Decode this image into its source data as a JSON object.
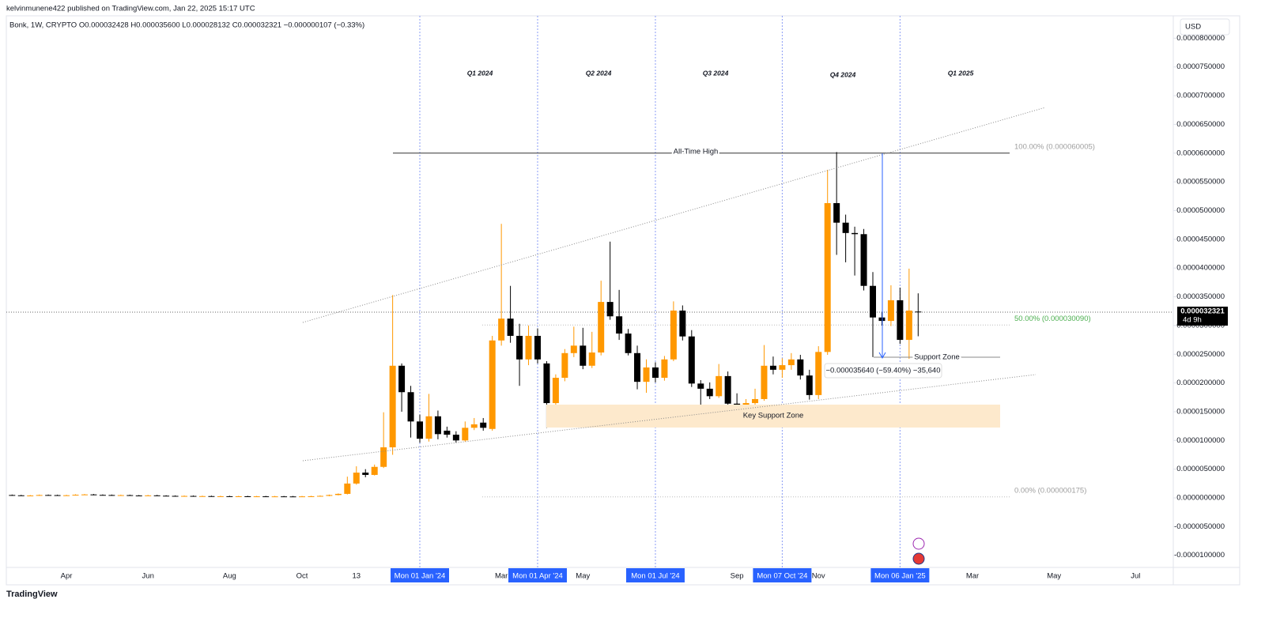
{
  "header": {
    "published": "kelvinmunene422 published on TradingView.com, Jan 22, 2025 15:17 UTC",
    "symbol_info": "Bonk, 1W, CRYPTO  O0.000032428  H0.000035600  L0.000028132  C0.000032321  −0.000000107 (−0.33%)",
    "currency": "USD",
    "brand": "TradingView"
  },
  "chart_data": {
    "type": "candlestick",
    "categories": [
      null,
      null,
      null,
      null,
      null,
      null,
      "Apr",
      null,
      null,
      null,
      null,
      null,
      null,
      null,
      null,
      "Jun",
      null,
      null,
      null,
      null,
      null,
      null,
      null,
      null,
      "Aug",
      null,
      null,
      null,
      null,
      null,
      null,
      null,
      "Oct",
      null,
      null,
      null,
      null,
      null,
      "13",
      null,
      null,
      null,
      null,
      null,
      null,
      "Mon 01 Jan '24",
      null,
      null,
      null,
      null,
      null,
      null,
      null,
      null,
      "Mar",
      null,
      null,
      null,
      "Mon 01 Apr '24",
      null,
      null,
      null,
      null,
      "May",
      null,
      null,
      null,
      null,
      null,
      null,
      null,
      "Mon 01 Jul '24",
      null,
      null,
      null,
      null,
      null,
      null,
      null,
      null,
      "Sep",
      null,
      null,
      null,
      null,
      "Mon 07 Oct '24",
      null,
      null,
      null,
      "Nov",
      null,
      null,
      null,
      null,
      null,
      null,
      null,
      null,
      "Mon 06 Jan '25",
      null,
      null,
      null,
      null,
      null,
      null,
      null,
      "Mar",
      null,
      null,
      null,
      null,
      null,
      null,
      null,
      null,
      "May",
      null,
      null,
      null,
      null,
      null,
      null,
      null,
      null,
      "Jul"
    ],
    "open": [
      5e-07,
      4.5e-07,
      4e-07,
      4.2e-07,
      5e-07,
      4.8e-07,
      4.2e-07,
      4.6e-07,
      5.5e-07,
      6e-07,
      5.2e-07,
      5e-07,
      4.5e-07,
      4.8e-07,
      4.2e-07,
      4e-07,
      4.4e-07,
      3.8e-07,
      3.5e-07,
      3.3e-07,
      3.4e-07,
      3e-07,
      3.1e-07,
      2.8e-07,
      2.9e-07,
      2.7e-07,
      2.8e-07,
      2.6e-07,
      2.7e-07,
      2.5e-07,
      2.6e-07,
      2.5e-07,
      2.4e-07,
      2.6e-07,
      2.8e-07,
      3.5e-07,
      5e-07,
      7e-07,
      2.5e-06,
      4.4e-06,
      4e-06,
      5.4e-06,
      8.8e-06,
      2.3e-05,
      1.84e-05,
      1.33e-05,
      1.03e-05,
      1.42e-05,
      1.17e-05,
      1.1e-05,
      1e-05,
      1.22e-05,
      1.31e-05,
      1.2e-05,
      2.74e-05,
      3.12e-05,
      2.82e-05,
      2.41e-05,
      2.82e-05,
      2.34e-05,
      1.65e-05,
      2.09e-05,
      2.52e-05,
      2.65e-05,
      2.3e-05,
      2.53e-05,
      3.41e-05,
      3.16e-05,
      2.86e-05,
      2.52e-05,
      2.02e-05,
      2.27e-05,
      2.09e-05,
      2.41e-05,
      3.26e-05,
      2.81e-05,
      1.99e-05,
      1.9e-05,
      1.77e-05,
      2.12e-05,
      1.64e-05,
      1.62e-05,
      1.65e-05,
      1.72e-05,
      2.3e-05,
      2.23e-05,
      2.31e-05,
      2.41e-05,
      2.13e-05,
      1.79e-05,
      2.54e-05,
      5.13e-05,
      4.79e-05,
      4.61e-05,
      4.59e-05,
      3.69e-05,
      3.14e-05,
      3.08e-05,
      3.44e-05,
      2.75e-05,
      3.2428e-05,
      null,
      null,
      null,
      null,
      null,
      null,
      null,
      null,
      null,
      null,
      null,
      null,
      null,
      null,
      null,
      null,
      null,
      null,
      null,
      null,
      null,
      null,
      null,
      null
    ],
    "high": [
      5.8e-07,
      5.3e-07,
      5e-07,
      5.8e-07,
      5.8e-07,
      5.6e-07,
      5.4e-07,
      6.3e-07,
      6.8e-07,
      6.8e-07,
      6e-07,
      5.8e-07,
      5.6e-07,
      5.6e-07,
      5e-07,
      5.2e-07,
      5.2e-07,
      4.6e-07,
      4.3e-07,
      4.2e-07,
      4.2e-07,
      3.9e-07,
      3.9e-07,
      3.7e-07,
      3.7e-07,
      3.6e-07,
      3.6e-07,
      3.5e-07,
      3.5e-07,
      3.4e-07,
      3.4e-07,
      3.3e-07,
      3.4e-07,
      3.6e-07,
      4.3e-07,
      5.8e-07,
      7.8e-07,
      3.7e-06,
      5.5e-06,
      5e-06,
      5.8e-06,
      1.49e-05,
      3.53e-05,
      2.34e-05,
      1.95e-05,
      1.45e-05,
      1.81e-05,
      1.52e-05,
      1.24e-05,
      1.16e-05,
      1.33e-05,
      1.39e-05,
      1.39e-05,
      2.82e-05,
      4.77e-05,
      3.69e-05,
      3.03e-05,
      3e-05,
      2.95e-05,
      2.38e-05,
      2.15e-05,
      2.59e-05,
      2.98e-05,
      2.96e-05,
      2.89e-05,
      3.78e-05,
      4.46e-05,
      3.62e-05,
      2.94e-05,
      2.65e-05,
      2.41e-05,
      2.36e-05,
      2.47e-05,
      3.42e-05,
      3.35e-05,
      2.92e-05,
      2.05e-05,
      2.01e-05,
      2.33e-05,
      2.2e-05,
      1.82e-05,
      1.72e-05,
      1.9e-05,
      2.66e-05,
      2.46e-05,
      2.43e-05,
      2.52e-05,
      2.49e-05,
      2.23e-05,
      2.64e-05,
      5.71e-05,
      6.02e-05,
      4.93e-05,
      4.72e-05,
      4.68e-05,
      3.93e-05,
      3.24e-05,
      3.7e-05,
      3.66e-05,
      3.99e-05,
      3.56e-05,
      null,
      null,
      null,
      null,
      null,
      null,
      null,
      null,
      null,
      null,
      null,
      null,
      null,
      null,
      null,
      null,
      null,
      null,
      null,
      null,
      null,
      null,
      null,
      null
    ],
    "low": [
      3.9e-07,
      3.4e-07,
      3.4e-07,
      3.6e-07,
      4.2e-07,
      3.6e-07,
      3.6e-07,
      4e-07,
      4.9e-07,
      4.6e-07,
      4.4e-07,
      3.9e-07,
      3.9e-07,
      3.6e-07,
      3.4e-07,
      3.4e-07,
      3.2e-07,
      2.9e-07,
      2.7e-07,
      2.7e-07,
      2.4e-07,
      2.4e-07,
      2.2e-07,
      2.2e-07,
      2.1e-07,
      2.1e-07,
      2e-07,
      2e-07,
      1.9e-07,
      1.9e-07,
      1.9e-07,
      1.8e-07,
      1.8e-07,
      2e-07,
      2.2e-07,
      2.9e-07,
      4.4e-07,
      6e-07,
      2.3e-06,
      3.6e-06,
      3.9e-06,
      5.2e-06,
      7.5e-06,
      1.5e-05,
      1.05e-05,
      9.6e-06,
      9.8e-06,
      1.02e-05,
      1.05e-05,
      9.6e-06,
      9.8e-06,
      1.18e-05,
      1.17e-05,
      1.17e-05,
      2.65e-05,
      2.7e-05,
      1.95e-05,
      2.31e-05,
      2.34e-05,
      1.22e-05,
      1.34e-05,
      2.03e-05,
      2.45e-05,
      2.24e-05,
      2.26e-05,
      2.48e-05,
      3.1e-05,
      2.75e-05,
      2.48e-05,
      1.89e-05,
      1.83e-05,
      2.01e-05,
      2.04e-05,
      2.38e-05,
      2.74e-05,
      1.93e-05,
      1.58e-05,
      1.72e-05,
      1.74e-05,
      1.59e-05,
      1.56e-05,
      1.59e-05,
      1.62e-05,
      1.69e-05,
      2.15e-05,
      2.09e-05,
      2.23e-05,
      2.06e-05,
      1.71e-05,
      1.72e-05,
      2.49e-05,
      4.23e-05,
      4.1e-05,
      3.87e-05,
      3.61e-05,
      2.45e-05,
      3e-05,
      2.99e-05,
      2.68e-05,
      2.42e-05,
      2.8132e-05,
      null,
      null,
      null,
      null,
      null,
      null,
      null,
      null,
      null,
      null,
      null,
      null,
      null,
      null,
      null,
      null,
      null,
      null,
      null,
      null,
      null,
      null,
      null,
      null
    ],
    "close": [
      4.5e-07,
      4e-07,
      4.2e-07,
      5e-07,
      4.8e-07,
      4.2e-07,
      4.6e-07,
      5.5e-07,
      6e-07,
      5.2e-07,
      5e-07,
      4.5e-07,
      4.8e-07,
      4.2e-07,
      4e-07,
      4.4e-07,
      3.8e-07,
      3.5e-07,
      3.3e-07,
      3.4e-07,
      3e-07,
      3.1e-07,
      2.8e-07,
      2.9e-07,
      2.7e-07,
      2.8e-07,
      2.6e-07,
      2.7e-07,
      2.5e-07,
      2.6e-07,
      2.5e-07,
      2.4e-07,
      2.6e-07,
      2.8e-07,
      3.5e-07,
      5e-07,
      7e-07,
      2.5e-06,
      4.4e-06,
      4e-06,
      5.4e-06,
      8.8e-06,
      2.3e-05,
      1.84e-05,
      1.33e-05,
      1.03e-05,
      1.42e-05,
      1.11e-05,
      1.1e-05,
      1e-05,
      1.22e-05,
      1.28e-05,
      1.22e-05,
      2.74e-05,
      3.12e-05,
      2.82e-05,
      2.41e-05,
      2.82e-05,
      2.41e-05,
      1.65e-05,
      2.09e-05,
      2.52e-05,
      2.65e-05,
      2.3e-05,
      2.53e-05,
      3.41e-05,
      3.16e-05,
      2.86e-05,
      2.52e-05,
      2.02e-05,
      2.27e-05,
      2.09e-05,
      2.41e-05,
      3.26e-05,
      2.81e-05,
      1.99e-05,
      1.9e-05,
      1.77e-05,
      2.12e-05,
      1.64e-05,
      1.62e-05,
      1.65e-05,
      1.72e-05,
      2.3e-05,
      2.23e-05,
      2.31e-05,
      2.41e-05,
      2.13e-05,
      1.79e-05,
      2.54e-05,
      5.13e-05,
      4.79e-05,
      4.61e-05,
      4.59e-05,
      3.69e-05,
      3.14e-05,
      3.08e-05,
      3.44e-05,
      2.75e-05,
      3.26e-05,
      3.2321e-05,
      null,
      null,
      null,
      null,
      null,
      null,
      null,
      null,
      null,
      null,
      null,
      null,
      null,
      null,
      null,
      null,
      null,
      null,
      null,
      null,
      null,
      null,
      null,
      null
    ],
    "up_color": "#ff9800",
    "down_color": "#000000",
    "ylim": [
      -1.21e-05,
      8.39e-05
    ],
    "yticks": [
      {
        "value": -1e-05,
        "label": "-0.0000100000"
      },
      {
        "value": -5e-06,
        "label": "-0.0000050000"
      },
      {
        "value": 0,
        "label": "0.0000000000"
      },
      {
        "value": 5e-06,
        "label": "0.0000050000"
      },
      {
        "value": 1e-05,
        "label": "0.0000100000"
      },
      {
        "value": 1.5e-05,
        "label": "0.0000150000"
      },
      {
        "value": 2e-05,
        "label": "0.0000200000"
      },
      {
        "value": 2.5e-05,
        "label": "0.0000250000"
      },
      {
        "value": 3e-05,
        "label": "0.0000300000"
      },
      {
        "value": 3.5e-05,
        "label": "0.0000350000"
      },
      {
        "value": 4e-05,
        "label": "0.0000400000"
      },
      {
        "value": 4.5e-05,
        "label": "0.0000450000"
      },
      {
        "value": 5e-05,
        "label": "0.0000500000"
      },
      {
        "value": 5.5e-05,
        "label": "0.0000550000"
      },
      {
        "value": 6e-05,
        "label": "0.0000600000"
      },
      {
        "value": 6.5e-05,
        "label": "0.0000650000"
      },
      {
        "value": 7e-05,
        "label": "0.0000700000"
      },
      {
        "value": 7.5e-05,
        "label": "0.0000750000"
      },
      {
        "value": 8e-05,
        "label": "0.0000800000"
      }
    ],
    "last_price": {
      "value": 3.2321e-05,
      "label": "0.000032321"
    },
    "countdown": "4d 9h",
    "quarters": [
      "Q1 2024",
      "Q2 2024",
      "Q3 2024",
      "Q4 2024",
      "Q1 2025"
    ],
    "ath_label": "All-Time High",
    "fib_levels": [
      {
        "value": 6.0005e-05,
        "label": "100.00% (0.000060005)",
        "color": "#9e9e9e"
      },
      {
        "value": 3.009e-05,
        "label": "50.00% (0.000030090)",
        "color": "#4caf50"
      },
      {
        "value": 1.75e-07,
        "label": "0.00% (0.000000175)",
        "color": "#9e9e9e"
      }
    ],
    "support_zone_label": "Support Zone",
    "key_support_zone_label": "Key Support Zone",
    "measure_label": "−0.000035640 (−59.40%) −35,640"
  }
}
